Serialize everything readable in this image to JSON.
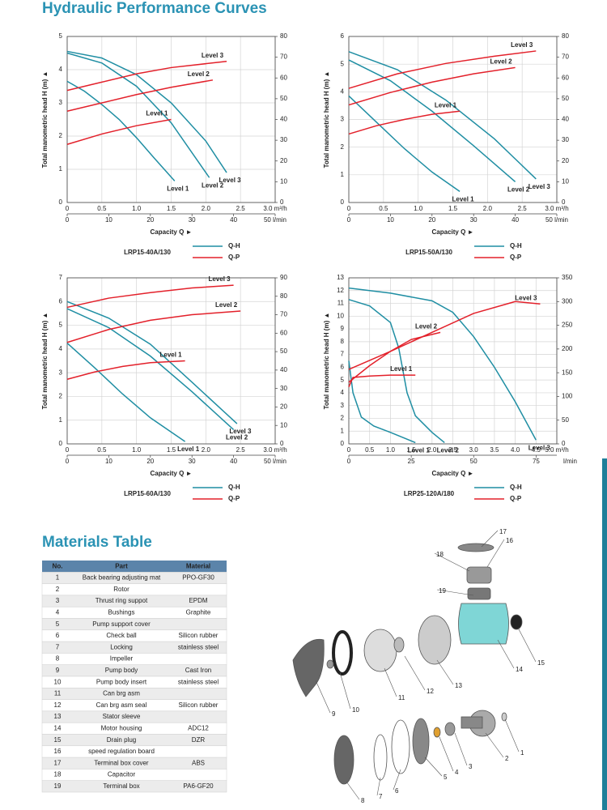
{
  "header": {
    "title": "Hydraulic Performance Curves"
  },
  "chart_data": [
    {
      "type": "line",
      "model": "LRP15-40A/130",
      "y_label": "Total manometric head H (m) ▲",
      "x_label": "Capacity Q ►",
      "grid": true,
      "xlim": [
        0,
        3
      ],
      "xticks": [
        0,
        0.5,
        {
          "value": 1,
          "label": "1.0"
        },
        1.5,
        {
          "value": 2,
          "label": "2.0"
        },
        2.5,
        {
          "value": 3,
          "label": "3.0 m³/h"
        }
      ],
      "x2lim": [
        0,
        50
      ],
      "x2ticks": [
        0,
        10,
        20,
        30,
        40,
        {
          "value": 50,
          "label": "50 l/min"
        }
      ],
      "ylim": [
        0,
        5
      ],
      "yticks": [
        0,
        1,
        2,
        3,
        4,
        5
      ],
      "y2lim": [
        0,
        80
      ],
      "y2ticks": [
        0,
        10,
        20,
        30,
        40,
        50,
        60,
        70,
        80
      ],
      "curves": [
        {
          "name": "Q-H",
          "color": "#1f8ea3",
          "axis": "y",
          "series": [
            {
              "name": "Level 1",
              "x": [
                0,
                0.25,
                0.5,
                0.75,
                1,
                1.25,
                1.55
              ],
              "values": [
                3.65,
                3.35,
                2.95,
                2.5,
                1.95,
                1.35,
                0.65
              ]
            },
            {
              "name": "Level 2",
              "x": [
                0,
                0.5,
                1,
                1.5,
                2.05
              ],
              "values": [
                4.5,
                4.2,
                3.5,
                2.4,
                0.75
              ]
            },
            {
              "name": "Level 3",
              "x": [
                0,
                0.5,
                1,
                1.5,
                2,
                2.3
              ],
              "values": [
                4.55,
                4.35,
                3.85,
                3,
                1.85,
                0.9
              ]
            }
          ]
        },
        {
          "name": "Q-P",
          "color": "#e3202a",
          "axis": "y2",
          "series": [
            {
              "name": "Level 1",
              "x": [
                0,
                0.5,
                1,
                1.5
              ],
              "values": [
                28,
                33,
                37,
                40
              ]
            },
            {
              "name": "Level 2",
              "x": [
                0,
                0.5,
                1,
                1.5,
                2.1
              ],
              "values": [
                44,
                48,
                52,
                55.5,
                59
              ]
            },
            {
              "name": "Level 3",
              "x": [
                0,
                0.5,
                1,
                1.5,
                2.3
              ],
              "values": [
                54,
                58,
                62,
                65,
                68
              ]
            }
          ]
        }
      ]
    },
    {
      "type": "line",
      "model": "LRP15-50A/130",
      "y_label": "Total manometric head H (m) ▲",
      "x_label": "Capacity Q ►",
      "grid": true,
      "xlim": [
        0,
        3
      ],
      "xticks": [
        0,
        0.5,
        {
          "value": 1,
          "label": "1.0"
        },
        1.5,
        {
          "value": 2,
          "label": "2.0"
        },
        2.5,
        {
          "value": 3,
          "label": "3.0 m³/h"
        }
      ],
      "x2lim": [
        0,
        50
      ],
      "x2ticks": [
        0,
        10,
        20,
        30,
        40,
        {
          "value": 50,
          "label": "50 l/min"
        }
      ],
      "ylim": [
        0,
        6
      ],
      "yticks": [
        0,
        1,
        2,
        3,
        4,
        5,
        6
      ],
      "y2lim": [
        0,
        80
      ],
      "y2ticks": [
        0,
        10,
        20,
        30,
        40,
        50,
        60,
        70,
        80
      ],
      "curves": [
        {
          "name": "Q-H",
          "color": "#1f8ea3",
          "axis": "y",
          "series": [
            {
              "name": "Level 1",
              "x": [
                0,
                0.4,
                0.8,
                1.2,
                1.6
              ],
              "values": [
                3.85,
                2.9,
                1.95,
                1.1,
                0.4
              ]
            },
            {
              "name": "Level 2",
              "x": [
                0,
                0.6,
                1.2,
                1.8,
                2.4
              ],
              "values": [
                5.15,
                4.4,
                3.3,
                2.05,
                0.75
              ]
            },
            {
              "name": "Level 3",
              "x": [
                0,
                0.7,
                1.4,
                2.1,
                2.7
              ],
              "values": [
                5.45,
                4.8,
                3.7,
                2.3,
                0.85
              ]
            }
          ]
        },
        {
          "name": "Q-P",
          "color": "#e3202a",
          "axis": "y2",
          "series": [
            {
              "name": "Level 1",
              "x": [
                0,
                0.4,
                0.8,
                1.2,
                1.6
              ],
              "values": [
                33,
                37,
                40,
                42.5,
                44
              ]
            },
            {
              "name": "Level 2",
              "x": [
                0,
                0.6,
                1.2,
                1.8,
                2.4
              ],
              "values": [
                47,
                53,
                58,
                62,
                65
              ]
            },
            {
              "name": "Level 3",
              "x": [
                0,
                0.7,
                1.4,
                2.1,
                2.7
              ],
              "values": [
                55,
                62,
                67,
                70.5,
                73
              ]
            }
          ]
        }
      ]
    },
    {
      "type": "line",
      "model": "LRP15-60A/130",
      "y_label": "Total manometric head H (m) ▲",
      "x_label": "Capacity Q ►",
      "grid": true,
      "xlim": [
        0,
        3
      ],
      "xticks": [
        0,
        0.5,
        {
          "value": 1,
          "label": "1.0"
        },
        1.5,
        {
          "value": 2,
          "label": "2.0"
        },
        2.5,
        {
          "value": 3,
          "label": "3.0 m³/h"
        }
      ],
      "x2lim": [
        0,
        50
      ],
      "x2ticks": [
        0,
        10,
        20,
        30,
        40,
        {
          "value": 50,
          "label": "50 l/min"
        }
      ],
      "ylim": [
        0,
        7
      ],
      "yticks": [
        0,
        1,
        2,
        3,
        4,
        5,
        6,
        7
      ],
      "y2lim": [
        0,
        90
      ],
      "y2ticks": [
        0,
        10,
        20,
        30,
        40,
        50,
        60,
        70,
        80,
        90
      ],
      "curves": [
        {
          "name": "Q-H",
          "color": "#1f8ea3",
          "axis": "y",
          "series": [
            {
              "name": "Level 1",
              "x": [
                0,
                0.4,
                0.8,
                1.2,
                1.7
              ],
              "values": [
                4.25,
                3.2,
                2.1,
                1.1,
                0.1
              ]
            },
            {
              "name": "Level 2",
              "x": [
                0,
                0.6,
                1.2,
                1.8,
                2.4
              ],
              "values": [
                5.7,
                4.9,
                3.7,
                2.2,
                0.6
              ]
            },
            {
              "name": "Level 3",
              "x": [
                0,
                0.6,
                1.2,
                1.8,
                2.45
              ],
              "values": [
                6,
                5.3,
                4.2,
                2.6,
                0.85
              ]
            }
          ]
        },
        {
          "name": "Q-P",
          "color": "#e3202a",
          "axis": "y2",
          "series": [
            {
              "name": "Level 1",
              "x": [
                0,
                0.4,
                0.8,
                1.2,
                1.7
              ],
              "values": [
                35,
                39,
                42,
                44,
                45
              ]
            },
            {
              "name": "Level 2",
              "x": [
                0,
                0.6,
                1.2,
                1.8,
                2.5
              ],
              "values": [
                55,
                62,
                67,
                70,
                72
              ]
            },
            {
              "name": "Level 3",
              "x": [
                0,
                0.6,
                1.2,
                1.8,
                2.4
              ],
              "values": [
                74,
                79,
                82,
                84.5,
                86
              ]
            }
          ]
        }
      ]
    },
    {
      "type": "line",
      "model": "LRP25-120A/180",
      "y_label": "Total manometric head H (m) ▲",
      "x_label": "Capacity Q ►",
      "grid": true,
      "xlim": [
        0,
        5
      ],
      "xticks": [
        0,
        0.5,
        {
          "value": 1,
          "label": "1.0"
        },
        1.5,
        {
          "value": 2,
          "label": "2.0"
        },
        2.5,
        {
          "value": 3,
          "label": "3.0"
        },
        3.5,
        {
          "value": 4,
          "label": "4.0"
        },
        4.5,
        {
          "value": 5,
          "label": "5.0 m³/h"
        }
      ],
      "x2lim": [
        0,
        83.3
      ],
      "x2ticks": [
        0,
        25,
        50,
        75
      ],
      "x2_unit": "l/min",
      "ylim": [
        0,
        13
      ],
      "yticks": [
        0,
        1,
        2,
        3,
        4,
        5,
        6,
        7,
        8,
        9,
        10,
        11,
        12,
        13
      ],
      "y2lim": [
        0,
        350
      ],
      "y2ticks": [
        0,
        50,
        100,
        150,
        200,
        250,
        300,
        350
      ],
      "curves": [
        {
          "name": "Q-H",
          "color": "#1f8ea3",
          "axis": "y",
          "series": [
            {
              "name": "Level 1",
              "x": [
                0,
                0.1,
                0.3,
                0.6,
                1,
                1.6
              ],
              "values": [
                6.5,
                4,
                2.1,
                1.4,
                0.9,
                0.1
              ]
            },
            {
              "name": "Level 2",
              "x": [
                0,
                0.5,
                1,
                1.2,
                1.4,
                1.6,
                2,
                2.3
              ],
              "values": [
                11.3,
                10.8,
                9.5,
                7.5,
                4,
                2.2,
                0.9,
                0.1
              ]
            },
            {
              "name": "Level 3",
              "x": [
                0,
                1,
                2,
                2.5,
                3,
                3.5,
                4,
                4.5
              ],
              "values": [
                12.2,
                11.8,
                11.2,
                10.3,
                8.4,
                6,
                3.3,
                0.3
              ]
            }
          ]
        },
        {
          "name": "Q-P",
          "color": "#e3202a",
          "axis": "y2",
          "series": [
            {
              "name": "Level 1",
              "x": [
                0,
                0.1,
                0.5,
                1,
                1.6
              ],
              "values": [
                120,
                140,
                143,
                145,
                145
              ]
            },
            {
              "name": "Level 2",
              "x": [
                0,
                0.5,
                1,
                1.5,
                2.2
              ],
              "values": [
                130,
                165,
                195,
                220,
                235
              ]
            },
            {
              "name": "Level 3",
              "x": [
                0,
                1,
                2,
                3,
                4,
                4.6
              ],
              "values": [
                157,
                195,
                235,
                275,
                300,
                295
              ]
            }
          ]
        }
      ]
    }
  ],
  "materials": {
    "title": "Materials Table",
    "columns": [
      "No.",
      "Part",
      "Material"
    ],
    "rows": [
      [
        "1",
        "Back bearing adjusting mat",
        "PPO-GF30"
      ],
      [
        "2",
        "Rotor",
        ""
      ],
      [
        "3",
        "Thrust ring suppot",
        "EPDM"
      ],
      [
        "4",
        "Bushings",
        "Graphite"
      ],
      [
        "5",
        "Pump support cover",
        ""
      ],
      [
        "6",
        "Check ball",
        "Silicon rubber"
      ],
      [
        "7",
        "Locking",
        "stainless steel"
      ],
      [
        "8",
        "Impeller",
        ""
      ],
      [
        "9",
        "Pump body",
        "Cast Iron"
      ],
      [
        "10",
        "Pump body insert",
        "stainless steel"
      ],
      [
        "11",
        "Can brg asm",
        ""
      ],
      [
        "12",
        "Can brg asm seal",
        "Silicon rubber"
      ],
      [
        "13",
        "Stator sleeve",
        ""
      ],
      [
        "14",
        "Motor housing",
        "ADC12"
      ],
      [
        "15",
        "Drain plug",
        "DZR"
      ],
      [
        "16",
        "speed regulation board",
        ""
      ],
      [
        "17",
        "Terminal box cover",
        "ABS"
      ],
      [
        "18",
        "Capacitor",
        ""
      ],
      [
        "19",
        "Terminal box",
        "PA6-GF20"
      ]
    ]
  },
  "diagram": {
    "labels": [
      "1",
      "2",
      "3",
      "4",
      "5",
      "6",
      "7",
      "8",
      "9",
      "10",
      "11",
      "12",
      "13",
      "14",
      "15",
      "16",
      "17",
      "18",
      "19"
    ]
  }
}
